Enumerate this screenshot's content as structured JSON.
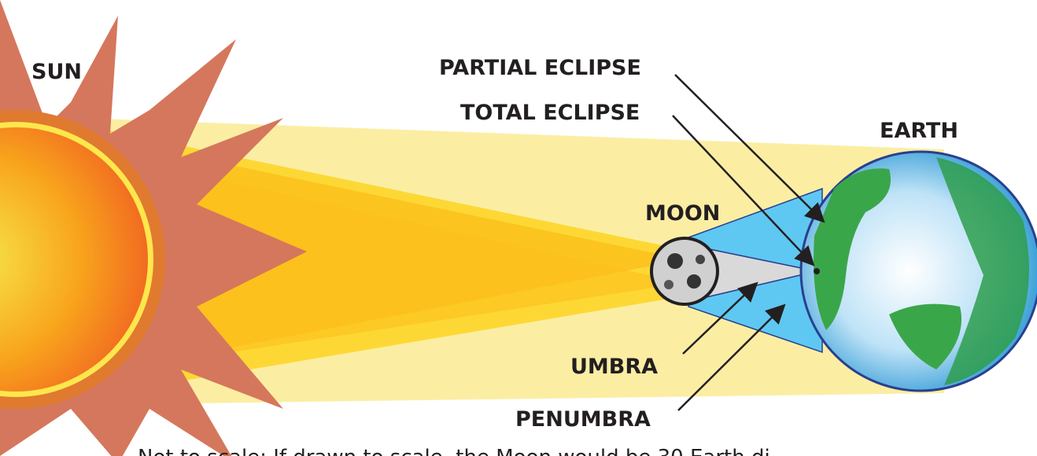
{
  "labels": {
    "sun": "SUN",
    "partial_eclipse": "PARTIAL ECLIPSE",
    "total_eclipse": "TOTAL ECLIPSE",
    "earth": "EARTH",
    "moon": "MOON",
    "umbra": "UMBRA",
    "penumbra": "PENUMBRA"
  },
  "caption": "Not to scale: If drawn to scale, the Moon would be 30 Earth di"
}
